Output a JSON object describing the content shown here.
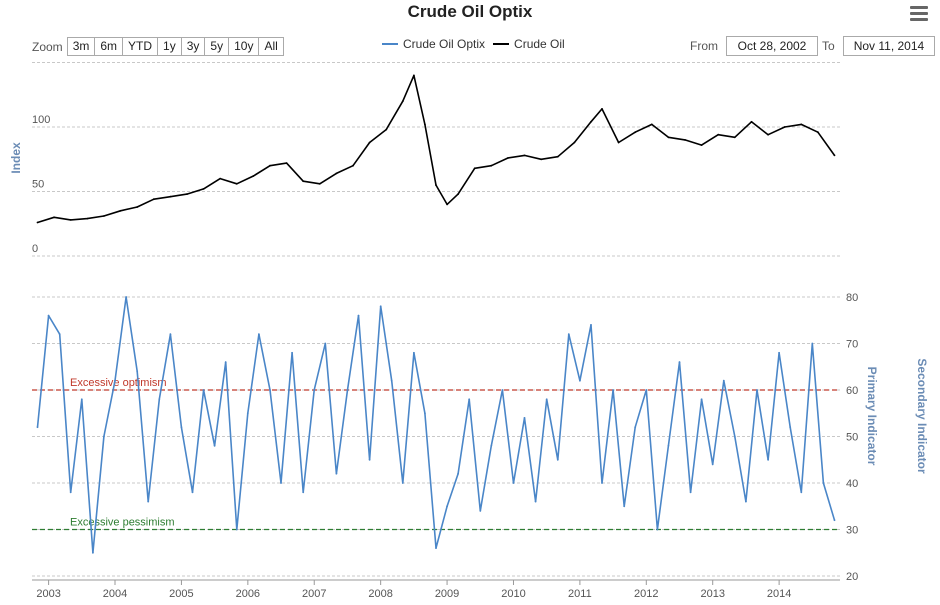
{
  "title": "Crude Oil Optix",
  "zoom": {
    "label": "Zoom",
    "buttons": [
      "3m",
      "6m",
      "YTD",
      "1y",
      "3y",
      "5y",
      "10y",
      "All"
    ]
  },
  "legend": {
    "items": [
      {
        "label": "Crude Oil Optix",
        "color": "#4a86c8"
      },
      {
        "label": "Crude Oil",
        "color": "#000000"
      }
    ]
  },
  "range": {
    "from_label": "From",
    "from_value": "Oct 28, 2002",
    "to_label": "To",
    "to_value": "Nov 11, 2014"
  },
  "colors": {
    "optix": "#4a86c8",
    "crude": "#000000",
    "optimism": "#c0392b",
    "pessimism": "#2e7d32",
    "grid": "#c8c8c8",
    "axis_title": "#6b8cb5"
  },
  "chart_data": [
    {
      "type": "line",
      "panel": "top",
      "ylabel": "Index",
      "yticks": [
        0,
        50,
        100
      ],
      "ylim": [
        0,
        150
      ],
      "x": [
        "2002-11",
        "2003-02",
        "2003-05",
        "2003-08",
        "2003-11",
        "2004-02",
        "2004-05",
        "2004-08",
        "2004-11",
        "2005-02",
        "2005-05",
        "2005-08",
        "2005-11",
        "2006-02",
        "2006-05",
        "2006-08",
        "2006-11",
        "2007-02",
        "2007-05",
        "2007-08",
        "2007-11",
        "2008-02",
        "2008-05",
        "2008-07",
        "2008-09",
        "2008-11",
        "2009-01",
        "2009-03",
        "2009-06",
        "2009-09",
        "2009-12",
        "2010-03",
        "2010-06",
        "2010-09",
        "2010-12",
        "2011-03",
        "2011-05",
        "2011-08",
        "2011-11",
        "2012-02",
        "2012-05",
        "2012-08",
        "2012-11",
        "2013-02",
        "2013-05",
        "2013-08",
        "2013-11",
        "2014-02",
        "2014-05",
        "2014-08",
        "2014-11"
      ],
      "series": [
        {
          "name": "Crude Oil",
          "values": [
            26,
            30,
            28,
            29,
            31,
            35,
            38,
            44,
            46,
            48,
            52,
            60,
            56,
            62,
            70,
            72,
            58,
            56,
            64,
            70,
            88,
            98,
            120,
            140,
            102,
            55,
            40,
            48,
            68,
            70,
            76,
            78,
            75,
            77,
            88,
            104,
            114,
            88,
            96,
            102,
            92,
            90,
            86,
            94,
            92,
            104,
            94,
            100,
            102,
            96,
            78
          ]
        }
      ]
    },
    {
      "type": "line",
      "panel": "bottom",
      "ylabel": "Primary Indicator",
      "y2label": "Secondary Indicator",
      "yticks": [
        20,
        30,
        40,
        50,
        60,
        70,
        80
      ],
      "ylim": [
        20,
        80
      ],
      "annotations": [
        {
          "label": "Excessive optimism",
          "y": 60
        },
        {
          "label": "Excessive pessimism",
          "y": 30
        }
      ],
      "xticks": [
        "2003",
        "2004",
        "2005",
        "2006",
        "2007",
        "2008",
        "2009",
        "2010",
        "2011",
        "2012",
        "2013",
        "2014"
      ],
      "x": [
        "2002-11",
        "2003-01",
        "2003-03",
        "2003-05",
        "2003-07",
        "2003-09",
        "2003-11",
        "2004-01",
        "2004-03",
        "2004-05",
        "2004-07",
        "2004-09",
        "2004-11",
        "2005-01",
        "2005-03",
        "2005-05",
        "2005-07",
        "2005-09",
        "2005-11",
        "2006-01",
        "2006-03",
        "2006-05",
        "2006-07",
        "2006-09",
        "2006-11",
        "2007-01",
        "2007-03",
        "2007-05",
        "2007-07",
        "2007-09",
        "2007-11",
        "2008-01",
        "2008-03",
        "2008-05",
        "2008-07",
        "2008-09",
        "2008-11",
        "2009-01",
        "2009-03",
        "2009-05",
        "2009-07",
        "2009-09",
        "2009-11",
        "2010-01",
        "2010-03",
        "2010-05",
        "2010-07",
        "2010-09",
        "2010-11",
        "2011-01",
        "2011-03",
        "2011-05",
        "2011-07",
        "2011-09",
        "2011-11",
        "2012-01",
        "2012-03",
        "2012-05",
        "2012-07",
        "2012-09",
        "2012-11",
        "2013-01",
        "2013-03",
        "2013-05",
        "2013-07",
        "2013-09",
        "2013-11",
        "2014-01",
        "2014-03",
        "2014-05",
        "2014-07",
        "2014-09",
        "2014-11"
      ],
      "series": [
        {
          "name": "Crude Oil Optix",
          "values": [
            52,
            76,
            72,
            38,
            58,
            25,
            50,
            62,
            80,
            64,
            36,
            58,
            72,
            52,
            38,
            60,
            48,
            66,
            30,
            55,
            72,
            60,
            40,
            68,
            38,
            60,
            70,
            42,
            60,
            76,
            45,
            78,
            62,
            40,
            68,
            55,
            26,
            35,
            42,
            58,
            34,
            48,
            60,
            40,
            54,
            36,
            58,
            45,
            72,
            62,
            74,
            40,
            60,
            35,
            52,
            60,
            30,
            48,
            66,
            38,
            58,
            44,
            62,
            50,
            36,
            60,
            45,
            68,
            52,
            38,
            70,
            40,
            32
          ]
        }
      ]
    }
  ]
}
